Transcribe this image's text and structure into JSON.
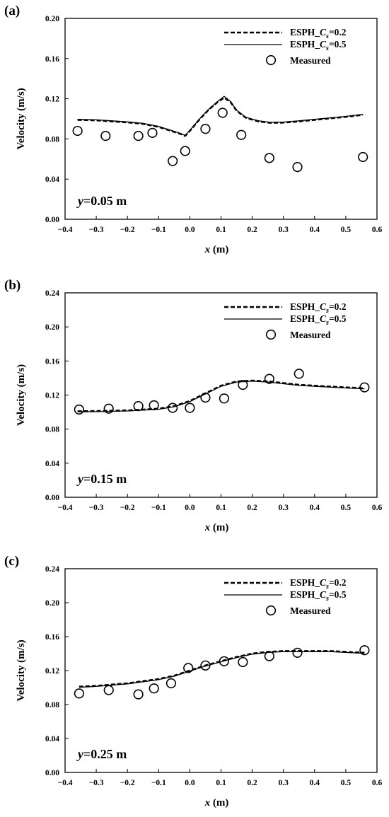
{
  "chart_data": [
    {
      "panel_label": "(a)",
      "type": "line",
      "xlabel": {
        "italic": "x",
        "rest": " (m)"
      },
      "ylabel": "Velocity (m/s)",
      "xlim": [
        -0.4,
        0.6
      ],
      "ylim": [
        0,
        0.2
      ],
      "xticks": [
        "−0.4",
        "−0.3",
        "−0.2",
        "−0.1",
        "0.0",
        "0.1",
        "0.2",
        "0.3",
        "0.4",
        "0.5",
        "0.6"
      ],
      "yticks": [
        "0.00",
        "0.04",
        "0.08",
        "0.12",
        "0.16",
        "0.20"
      ],
      "annotation": {
        "italic": "y",
        "rest": "=0.05 m"
      },
      "legend": [
        {
          "name": "ESPH_Cₛ=0.2",
          "prefix": "ESPH_",
          "italic": "C",
          "sub": "s",
          "suffix": "=0.2",
          "style": "dashed"
        },
        {
          "name": "ESPH_Cₛ=0.5",
          "prefix": "ESPH_",
          "italic": "C",
          "sub": "s",
          "suffix": "=0.5",
          "style": "solid"
        },
        {
          "name": "Measured",
          "prefix": "Measured",
          "italic": "",
          "sub": "",
          "suffix": "",
          "style": "marker"
        }
      ],
      "series": [
        {
          "name": "ESPH_Cₛ=0.2",
          "style": "dashed",
          "x": [
            -0.36,
            -0.3,
            -0.25,
            -0.2,
            -0.15,
            -0.1,
            -0.06,
            -0.03,
            -0.015,
            0.0,
            0.03,
            0.06,
            0.09,
            0.11,
            0.13,
            0.15,
            0.18,
            0.22,
            0.26,
            0.3,
            0.35,
            0.4,
            0.45,
            0.5,
            0.555
          ],
          "y": [
            0.099,
            0.0985,
            0.0975,
            0.0965,
            0.095,
            0.092,
            0.088,
            0.085,
            0.083,
            0.088,
            0.099,
            0.109,
            0.117,
            0.121,
            0.117,
            0.108,
            0.101,
            0.0975,
            0.096,
            0.0963,
            0.0975,
            0.099,
            0.1005,
            0.102,
            0.104
          ]
        },
        {
          "name": "ESPH_Cₛ=0.5",
          "style": "solid",
          "x": [
            -0.36,
            -0.3,
            -0.25,
            -0.2,
            -0.15,
            -0.1,
            -0.06,
            -0.03,
            -0.015,
            0.0,
            0.03,
            0.06,
            0.09,
            0.11,
            0.13,
            0.15,
            0.18,
            0.22,
            0.26,
            0.3,
            0.35,
            0.4,
            0.45,
            0.5,
            0.555
          ],
          "y": [
            0.0995,
            0.099,
            0.098,
            0.097,
            0.0955,
            0.0925,
            0.0885,
            0.0855,
            0.0835,
            0.0885,
            0.0995,
            0.1095,
            0.1175,
            0.1225,
            0.1175,
            0.1085,
            0.1015,
            0.098,
            0.0965,
            0.0968,
            0.098,
            0.0995,
            0.101,
            0.1025,
            0.1045
          ]
        },
        {
          "name": "Measured",
          "style": "marker",
          "x": [
            -0.36,
            -0.27,
            -0.165,
            -0.12,
            -0.055,
            -0.015,
            0.05,
            0.105,
            0.165,
            0.255,
            0.345,
            0.555
          ],
          "y": [
            0.088,
            0.083,
            0.083,
            0.086,
            0.058,
            0.068,
            0.09,
            0.106,
            0.084,
            0.061,
            0.052,
            0.062
          ]
        }
      ]
    },
    {
      "panel_label": "(b)",
      "type": "line",
      "xlabel": {
        "italic": "x",
        "rest": " (m)"
      },
      "ylabel": "Velocity (m/s)",
      "xlim": [
        -0.4,
        0.6
      ],
      "ylim": [
        0,
        0.24
      ],
      "xticks": [
        "−0.4",
        "−0.3",
        "−0.2",
        "−0.1",
        "0.0",
        "0.1",
        "0.2",
        "0.3",
        "0.4",
        "0.5",
        "0.6"
      ],
      "yticks": [
        "0.00",
        "0.04",
        "0.08",
        "0.12",
        "0.16",
        "0.20",
        "0.24"
      ],
      "annotation": {
        "italic": "y",
        "rest": "=0.15 m"
      },
      "legend": [
        {
          "name": "ESPH_Cₛ=0.2",
          "prefix": "ESPH_",
          "italic": "C",
          "sub": "s",
          "suffix": "=0.2",
          "style": "dashed"
        },
        {
          "name": "ESPH_Cₛ=0.5",
          "prefix": "ESPH_",
          "italic": "C",
          "sub": "s",
          "suffix": "=0.5",
          "style": "solid"
        },
        {
          "name": "Measured",
          "prefix": "Measured",
          "italic": "",
          "sub": "",
          "suffix": "",
          "style": "marker"
        }
      ],
      "series": [
        {
          "name": "ESPH_Cₛ=0.2",
          "style": "dashed",
          "x": [
            -0.36,
            -0.3,
            -0.2,
            -0.1,
            -0.05,
            0.0,
            0.05,
            0.1,
            0.15,
            0.2,
            0.25,
            0.3,
            0.35,
            0.4,
            0.45,
            0.5,
            0.56
          ],
          "y": [
            0.101,
            0.1012,
            0.102,
            0.104,
            0.107,
            0.113,
            0.122,
            0.131,
            0.136,
            0.137,
            0.136,
            0.134,
            0.132,
            0.131,
            0.13,
            0.129,
            0.128
          ]
        },
        {
          "name": "ESPH_Cₛ=0.5",
          "style": "solid",
          "x": [
            -0.36,
            -0.3,
            -0.2,
            -0.1,
            -0.05,
            0.0,
            0.05,
            0.1,
            0.15,
            0.2,
            0.25,
            0.3,
            0.35,
            0.4,
            0.45,
            0.5,
            0.56
          ],
          "y": [
            0.1003,
            0.1005,
            0.1013,
            0.1033,
            0.1063,
            0.1123,
            0.1213,
            0.1303,
            0.1353,
            0.1363,
            0.1353,
            0.1333,
            0.1313,
            0.1303,
            0.1293,
            0.1283,
            0.1273
          ]
        },
        {
          "name": "Measured",
          "style": "marker",
          "x": [
            -0.355,
            -0.26,
            -0.165,
            -0.115,
            -0.055,
            0.0,
            0.05,
            0.11,
            0.17,
            0.255,
            0.35,
            0.56
          ],
          "y": [
            0.103,
            0.104,
            0.107,
            0.108,
            0.105,
            0.105,
            0.117,
            0.116,
            0.132,
            0.139,
            0.145,
            0.129
          ]
        }
      ]
    },
    {
      "panel_label": "(c)",
      "type": "line",
      "xlabel": {
        "italic": "x",
        "rest": " (m)"
      },
      "ylabel": "Velocity (m/s)",
      "xlim": [
        -0.4,
        0.6
      ],
      "ylim": [
        0,
        0.24
      ],
      "xticks": [
        "−0.4",
        "−0.3",
        "−0.2",
        "−0.1",
        "0.0",
        "0.1",
        "0.2",
        "0.3",
        "0.4",
        "0.5",
        "0.6"
      ],
      "yticks": [
        "0.00",
        "0.04",
        "0.08",
        "0.12",
        "0.16",
        "0.20",
        "0.24"
      ],
      "annotation": {
        "italic": "y",
        "rest": "=0.25 m"
      },
      "legend": [
        {
          "name": "ESPH_Cₛ=0.2",
          "prefix": "ESPH_",
          "italic": "C",
          "sub": "s",
          "suffix": "=0.2",
          "style": "dashed"
        },
        {
          "name": "ESPH_Cₛ=0.5",
          "prefix": "ESPH_",
          "italic": "C",
          "sub": "s",
          "suffix": "=0.5",
          "style": "solid"
        },
        {
          "name": "Measured",
          "prefix": "Measured",
          "italic": "",
          "sub": "",
          "suffix": "",
          "style": "marker"
        }
      ],
      "series": [
        {
          "name": "ESPH_Cₛ=0.2",
          "style": "dashed",
          "x": [
            -0.355,
            -0.3,
            -0.2,
            -0.1,
            -0.05,
            0.0,
            0.05,
            0.1,
            0.15,
            0.2,
            0.25,
            0.3,
            0.35,
            0.4,
            0.45,
            0.5,
            0.56
          ],
          "y": [
            0.101,
            0.102,
            0.105,
            0.11,
            0.114,
            0.12,
            0.126,
            0.131,
            0.136,
            0.14,
            0.142,
            0.143,
            0.143,
            0.143,
            0.143,
            0.142,
            0.141
          ]
        },
        {
          "name": "ESPH_Cₛ=0.5",
          "style": "solid",
          "x": [
            -0.355,
            -0.3,
            -0.2,
            -0.1,
            -0.05,
            0.0,
            0.05,
            0.1,
            0.15,
            0.2,
            0.25,
            0.3,
            0.35,
            0.4,
            0.45,
            0.5,
            0.56
          ],
          "y": [
            0.1003,
            0.1013,
            0.1043,
            0.1093,
            0.1133,
            0.1193,
            0.1253,
            0.1303,
            0.1353,
            0.1393,
            0.1413,
            0.1423,
            0.1423,
            0.1423,
            0.1423,
            0.1413,
            0.1403
          ]
        },
        {
          "name": "Measured",
          "style": "marker",
          "x": [
            -0.355,
            -0.26,
            -0.165,
            -0.115,
            -0.06,
            -0.005,
            0.05,
            0.11,
            0.17,
            0.255,
            0.345,
            0.56
          ],
          "y": [
            0.093,
            0.097,
            0.092,
            0.099,
            0.105,
            0.123,
            0.126,
            0.131,
            0.13,
            0.137,
            0.141,
            0.144
          ]
        }
      ]
    }
  ]
}
